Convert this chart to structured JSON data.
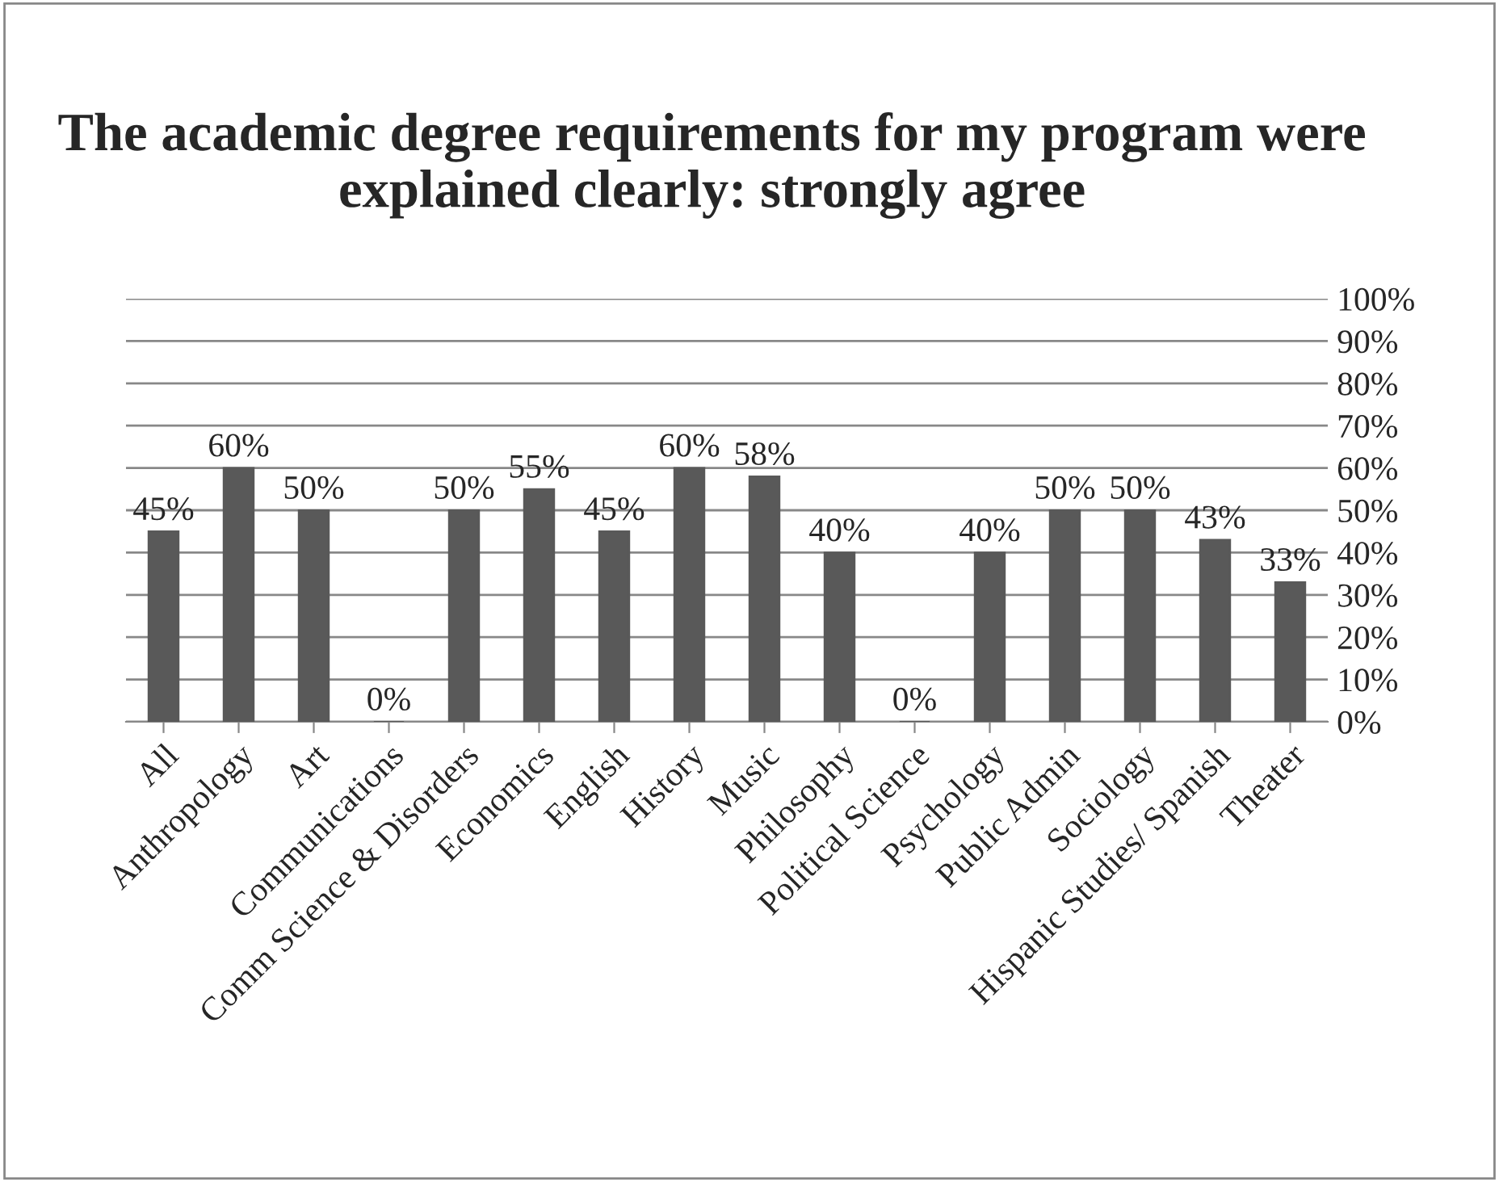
{
  "chart_data": {
    "type": "bar",
    "title": "The academic degree requirements for my program were explained clearly: strongly agree",
    "categories": [
      "All",
      "Anthropology",
      "Art",
      "Communications",
      "Comm Science & Disorders",
      "Economics",
      "English",
      "History",
      "Music",
      "Philosophy",
      "Political Science",
      "Psychology",
      "Public Admin",
      "Sociology",
      "Hispanic Studies/ Spanish",
      "Theater"
    ],
    "values": [
      45,
      60,
      50,
      0,
      50,
      55,
      45,
      60,
      58,
      40,
      0,
      40,
      50,
      50,
      43,
      33
    ],
    "value_labels": [
      "45%",
      "60%",
      "50%",
      "0%",
      "50%",
      "55%",
      "45%",
      "60%",
      "58%",
      "40%",
      "0%",
      "40%",
      "50%",
      "50%",
      "43%",
      "33%"
    ],
    "color": "#595959",
    "ylim": [
      0,
      100
    ],
    "yticks": [
      {
        "value": 0,
        "label": "0%"
      },
      {
        "value": 10,
        "label": "10%"
      },
      {
        "value": 20,
        "label": "20%"
      },
      {
        "value": 30,
        "label": "30%"
      },
      {
        "value": 40,
        "label": "40%"
      },
      {
        "value": 50,
        "label": "50%"
      },
      {
        "value": 60,
        "label": "60%"
      },
      {
        "value": 70,
        "label": "70%"
      },
      {
        "value": 80,
        "label": "80%"
      },
      {
        "value": 90,
        "label": "90%"
      },
      {
        "value": 100,
        "label": "100%"
      }
    ],
    "grid": "y"
  }
}
